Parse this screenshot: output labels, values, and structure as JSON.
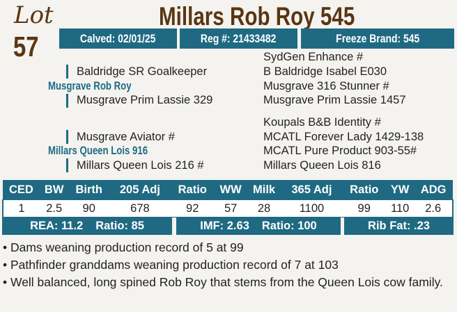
{
  "lot": {
    "word": "Lot",
    "number": "57"
  },
  "title": "Millars Rob Roy 545",
  "info": {
    "calved": "Calved: 02/01/25",
    "reg": "Reg #: 21433482",
    "freeze_brand": "Freeze Brand: 545"
  },
  "pedigree": {
    "sire": "Musgrave Rob Roy",
    "sire_sire": "Baldridge SR Goalkeeper",
    "sire_dam": "Musgrave Prim Lassie 329",
    "ss_sire": "SydGen Enhance #",
    "ss_dam": "B Baldridge Isabel E030",
    "sd_sire": "Musgrave 316 Stunner #",
    "sd_dam": "Musgrave Prim Lassie 1457",
    "dam": "Millars Queen Lois 916",
    "dam_sire": "Musgrave Aviator #",
    "dam_dam": "Millars Queen Lois 216 #",
    "ds_sire": "Koupals B&B Identity #",
    "ds_dam": "MCATL Forever Lady 1429-138",
    "dd_sire": "MCATL Pure Product 903-55#",
    "dd_dam": "Millars Queen Lois 816"
  },
  "epd": {
    "headers": [
      "CED",
      "BW",
      "Birth",
      "205 Adj",
      "Ratio",
      "WW",
      "Milk",
      "365 Adj",
      "Ratio",
      "YW",
      "ADG"
    ],
    "values": [
      "1",
      "2.5",
      "90",
      "678",
      "92",
      "57",
      "28",
      "1100",
      "99",
      "110",
      "2.6"
    ]
  },
  "carcass": {
    "rea": "REA: 11.2",
    "rea_ratio": "Ratio: 85",
    "imf": "IMF: 2.63",
    "imf_ratio": "Ratio: 100",
    "rib_fat": "Rib Fat: .23"
  },
  "notes": [
    "• Dams weaning production record of 5 at 99",
    "• Pathfinder granddams weaning production record of 7 at 103",
    "• Well balanced, long spined Rob Roy that stems from the Queen Lois cow family."
  ]
}
